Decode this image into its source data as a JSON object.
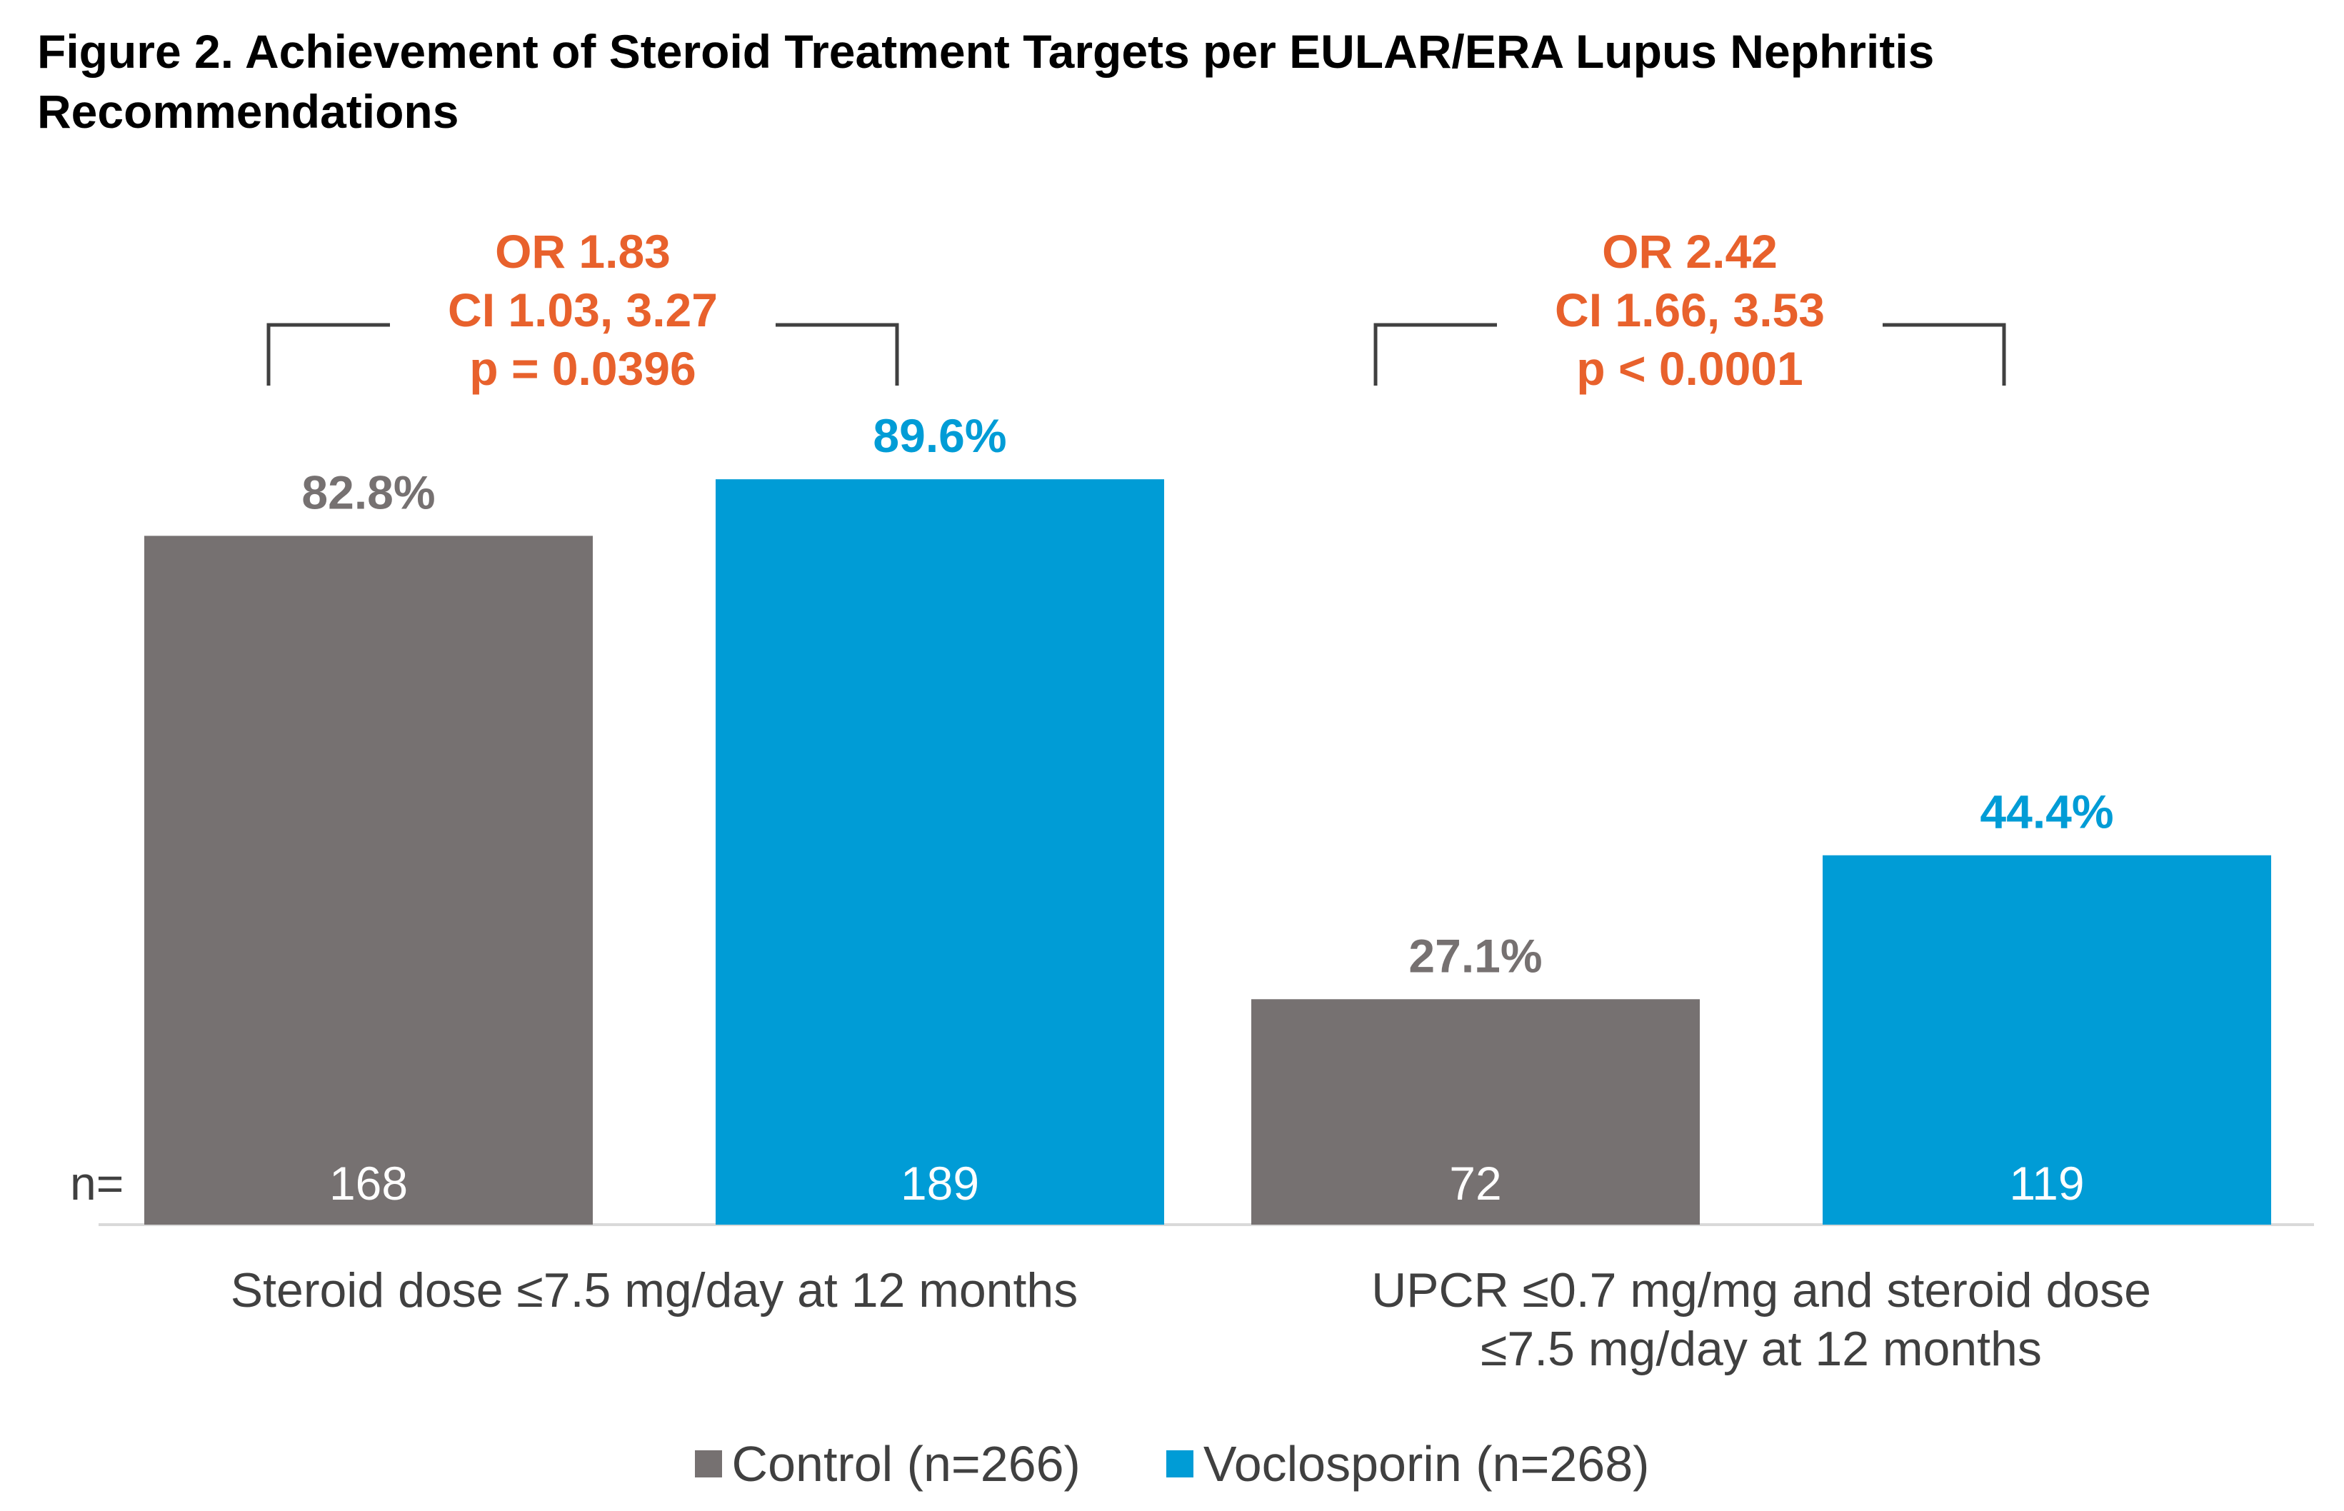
{
  "title": "Figure 2. Achievement of Steroid Treatment Targets per EULAR/ERA Lupus Nephritis Recommendations",
  "colors": {
    "control": "#767171",
    "voclosporin": "#009CD6",
    "stats": "#E8612C",
    "bracket": "#404040"
  },
  "n_prefix": "n=",
  "chart_data": {
    "type": "bar",
    "categories": [
      "Steroid dose ≤7.5 mg/day at 12 months",
      "UPCR ≤0.7 mg/mg and steroid dose ≤7.5 mg/day at 12 months"
    ],
    "category_lines": [
      [
        "Steroid dose ≤7.5 mg/day at 12 months"
      ],
      [
        "UPCR ≤0.7 mg/mg and steroid dose",
        "≤7.5 mg/day at 12 months"
      ]
    ],
    "series": [
      {
        "name": "Control (n=266)",
        "values": [
          82.8,
          27.1
        ],
        "labels": [
          "82.8%",
          "27.1%"
        ],
        "n": [
          "168",
          "72"
        ]
      },
      {
        "name": "Voclosporin (n=268)",
        "values": [
          89.6,
          44.4
        ],
        "labels": [
          "89.6%",
          "44.4%"
        ],
        "n": [
          "189",
          "119"
        ]
      }
    ],
    "annotations": [
      {
        "lines": [
          "OR 1.83",
          "CI 1.03, 3.27",
          "p =  0.0396"
        ]
      },
      {
        "lines": [
          "OR 2.42",
          "CI 1.66, 3.53",
          "p < 0.0001"
        ]
      }
    ],
    "ylim": [
      0,
      100
    ],
    "grid": false,
    "legend": "bottom"
  }
}
